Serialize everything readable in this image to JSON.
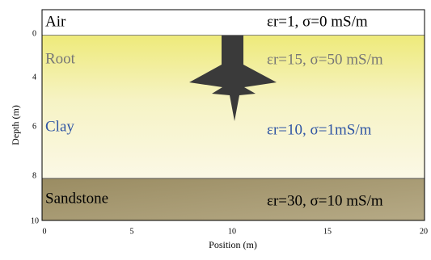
{
  "layers": [
    {
      "name": "Air",
      "properties": "εr=1, σ=0 mS/m"
    },
    {
      "name": "Root",
      "properties": "εr=15, σ=50 mS/m"
    },
    {
      "name": "Clay",
      "properties": "εr=10, σ=1mS/m"
    },
    {
      "name": "Sandstone",
      "properties": "εr=30, σ=10 mS/m"
    }
  ],
  "axes": {
    "x_label": "Position (m)",
    "y_label": "Depth (m)",
    "x_ticks": [
      "0",
      "5",
      "10",
      "15",
      "20"
    ],
    "y_ticks": [
      "0",
      "4",
      "6",
      "8",
      "10"
    ]
  }
}
